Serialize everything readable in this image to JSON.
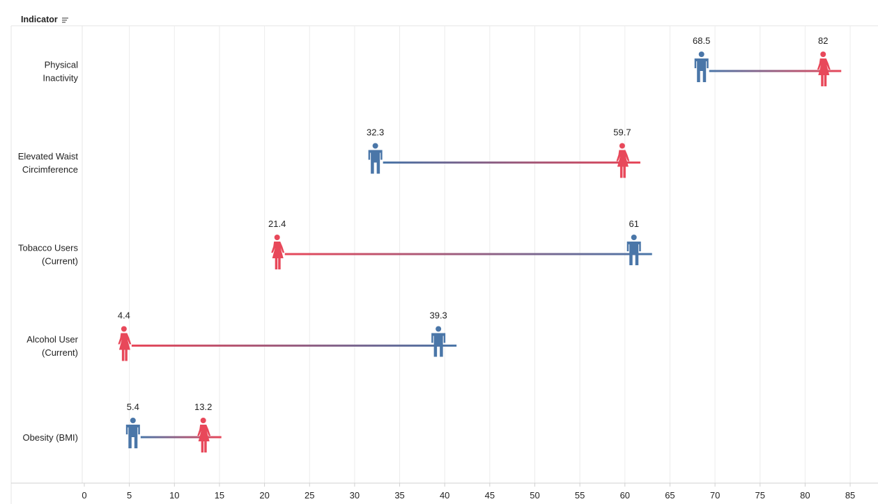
{
  "header": {
    "dimension_label": "Indicator"
  },
  "icons": {
    "sort": "sort-icon",
    "male": "male-figure-icon",
    "female": "female-figure-icon"
  },
  "colors": {
    "male": "#4a76a8",
    "female": "#e8485a",
    "grid": "#ececec",
    "axis": "#d0d0d0",
    "text": "#222222"
  },
  "chart_data": {
    "type": "dumbbell",
    "xlim": [
      0,
      85
    ],
    "xticks": [
      0,
      5,
      10,
      15,
      20,
      25,
      30,
      35,
      40,
      45,
      50,
      55,
      60,
      65,
      70,
      75,
      80,
      85
    ],
    "grid": true,
    "series": [
      {
        "key": "male",
        "color": "#4a76a8"
      },
      {
        "key": "female",
        "color": "#e8485a"
      }
    ],
    "rows": [
      {
        "label": "Physical Inactivity",
        "lines": [
          "Physical",
          "Inactivity"
        ],
        "male": 68.5,
        "female": 82,
        "male_label": "68.5",
        "female_label": "82"
      },
      {
        "label": "Elevated Waist Circimference",
        "lines": [
          "Elevated Waist",
          "Circimference"
        ],
        "male": 32.3,
        "female": 59.7,
        "male_label": "32.3",
        "female_label": "59.7"
      },
      {
        "label": "Tobacco Users (Current)",
        "lines": [
          "Tobacco Users",
          "(Current)"
        ],
        "male": 61,
        "female": 21.4,
        "male_label": "61",
        "female_label": "21.4"
      },
      {
        "label": "Alcohol User (Current)",
        "lines": [
          "Alcohol User",
          "(Current)"
        ],
        "male": 39.3,
        "female": 4.4,
        "male_label": "39.3",
        "female_label": "4.4"
      },
      {
        "label": "Obesity (BMI)",
        "lines": [
          "Obesity (BMI)"
        ],
        "male": 5.4,
        "female": 13.2,
        "male_label": "5.4",
        "female_label": "13.2"
      }
    ]
  }
}
